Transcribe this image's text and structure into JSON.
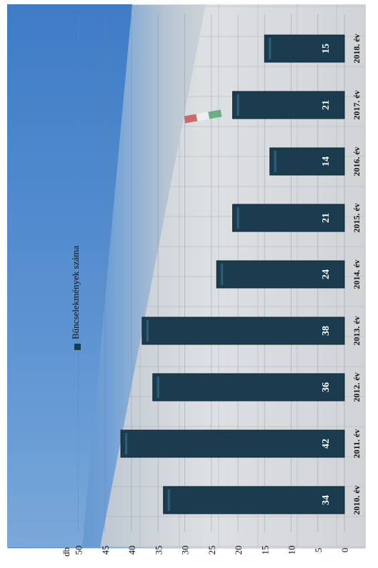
{
  "chart_data": {
    "type": "bar",
    "orientation": "horizontal-rotated",
    "title": "",
    "ylabel": "db",
    "ylim": [
      0,
      50
    ],
    "yticks": [
      0,
      5,
      10,
      15,
      20,
      25,
      30,
      35,
      40,
      45,
      50
    ],
    "categories": [
      "2010. év",
      "2011. év",
      "2012. év",
      "2013. év",
      "2014. év",
      "2015. év",
      "2016. év",
      "2017. év",
      "2018. év"
    ],
    "series": [
      {
        "name": "Bűncselekmények száma",
        "values": [
          34,
          42,
          36,
          38,
          24,
          21,
          14,
          21,
          15
        ],
        "color": "#1b3b4f"
      }
    ],
    "legend_position": "top-left",
    "grid": true
  }
}
